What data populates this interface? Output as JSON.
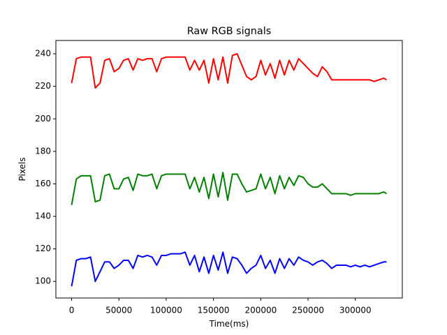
{
  "chart_data": {
    "type": "line",
    "title": "Raw RGB signals",
    "x_label": "Time(ms)",
    "y_label": "Pixels",
    "x": [
      0,
      5000,
      10000,
      15000,
      20000,
      25000,
      30000,
      35000,
      40000,
      45000,
      50000,
      55000,
      60000,
      65000,
      70000,
      75000,
      80000,
      85000,
      90000,
      95000,
      100000,
      105000,
      110000,
      115000,
      120000,
      125000,
      130000,
      135000,
      140000,
      145000,
      150000,
      155000,
      160000,
      165000,
      170000,
      175000,
      180000,
      185000,
      190000,
      195000,
      200000,
      205000,
      210000,
      215000,
      220000,
      225000,
      230000,
      235000,
      240000,
      245000,
      250000,
      255000,
      260000,
      265000,
      270000,
      275000,
      280000,
      285000,
      290000,
      295000,
      300000,
      305000,
      310000,
      315000,
      320000,
      325000,
      330000,
      333000
    ],
    "series": [
      {
        "color": "#ff0000",
        "values": [
          222,
          237,
          238,
          238,
          238,
          219,
          222,
          236,
          237,
          229,
          231,
          236,
          237,
          230,
          237,
          236,
          237,
          237,
          229,
          237,
          238,
          238,
          238,
          238,
          238,
          230,
          236,
          230,
          236,
          222,
          237,
          224,
          238,
          222,
          239,
          240,
          233,
          226,
          224,
          226,
          236,
          227,
          234,
          225,
          236,
          227,
          236,
          230,
          237,
          234,
          231,
          228,
          226,
          232,
          229,
          224,
          224,
          224,
          224,
          224,
          224,
          224,
          224,
          224,
          223,
          224,
          225,
          224
        ]
      },
      {
        "color": "#008000",
        "values": [
          147,
          163,
          165,
          165,
          165,
          149,
          150,
          165,
          166,
          157,
          157,
          163,
          164,
          156,
          166,
          165,
          165,
          166,
          157,
          165,
          166,
          166,
          166,
          166,
          166,
          157,
          164,
          155,
          164,
          151,
          166,
          152,
          167,
          150,
          166,
          166,
          160,
          155,
          156,
          157,
          166,
          157,
          164,
          154,
          165,
          157,
          164,
          159,
          165,
          164,
          160,
          158,
          158,
          160,
          157,
          154,
          154,
          154,
          154,
          153,
          154,
          154,
          154,
          154,
          154,
          154,
          155,
          154
        ]
      },
      {
        "color": "#0000ff",
        "values": [
          97,
          113,
          114,
          114,
          115,
          100,
          106,
          112,
          112,
          108,
          110,
          113,
          113,
          108,
          116,
          115,
          116,
          115,
          110,
          116,
          116,
          117,
          117,
          117,
          118,
          110,
          116,
          106,
          115,
          105,
          116,
          107,
          118,
          105,
          115,
          114,
          110,
          105,
          108,
          110,
          116,
          108,
          113,
          105,
          114,
          108,
          114,
          110,
          115,
          113,
          112,
          110,
          112,
          113,
          111,
          108,
          110,
          110,
          110,
          109,
          110,
          109,
          110,
          109,
          110,
          111,
          112,
          112
        ]
      }
    ],
    "xlim": [
      -16650,
      349650
    ],
    "ylim": [
      89.8,
      248.2
    ],
    "xticks": [
      0,
      50000,
      100000,
      150000,
      200000,
      250000,
      300000
    ],
    "yticks": [
      100,
      120,
      140,
      160,
      180,
      200,
      220,
      240
    ]
  }
}
